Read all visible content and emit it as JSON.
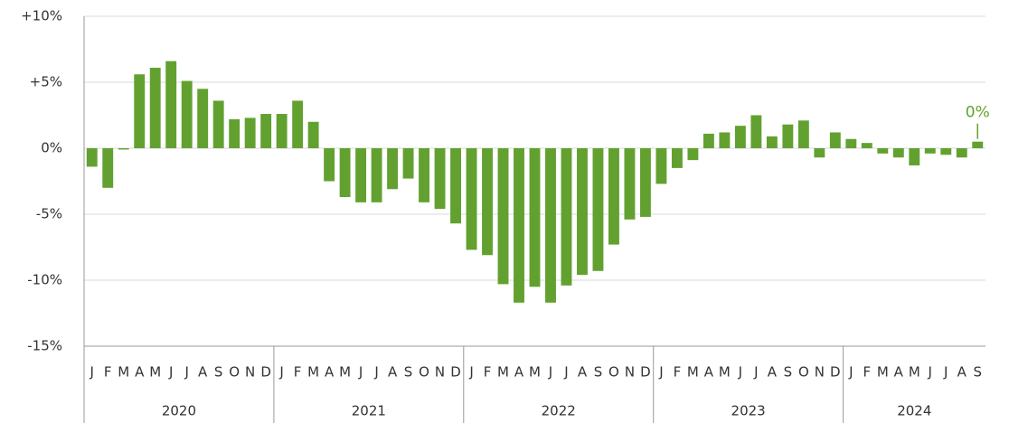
{
  "chart_data": {
    "type": "bar",
    "categories": [
      "J",
      "F",
      "M",
      "A",
      "M",
      "J",
      "J",
      "A",
      "S",
      "O",
      "N",
      "D",
      "J",
      "F",
      "M",
      "A",
      "M",
      "J",
      "J",
      "A",
      "S",
      "O",
      "N",
      "D",
      "J",
      "F",
      "M",
      "A",
      "M",
      "J",
      "J",
      "A",
      "S",
      "O",
      "N",
      "D",
      "J",
      "F",
      "M",
      "A",
      "M",
      "J",
      "J",
      "A",
      "S",
      "O",
      "N",
      "D",
      "J",
      "F",
      "M",
      "A",
      "M",
      "J",
      "J",
      "A",
      "S"
    ],
    "years": [
      "2020",
      "2021",
      "2022",
      "2023",
      "2024"
    ],
    "values": [
      -1.4,
      -3.0,
      -0.1,
      5.6,
      6.1,
      6.6,
      5.1,
      4.5,
      3.6,
      2.2,
      2.3,
      2.6,
      2.6,
      3.6,
      2.0,
      -2.5,
      -3.7,
      -4.1,
      -4.1,
      -3.1,
      -2.3,
      -4.1,
      -4.6,
      -5.7,
      -7.7,
      -8.1,
      -10.3,
      -11.7,
      -10.5,
      -11.7,
      -10.4,
      -9.6,
      -9.3,
      -7.3,
      -5.4,
      -5.2,
      -2.7,
      -1.5,
      -0.9,
      1.1,
      1.2,
      1.7,
      2.5,
      0.9,
      1.8,
      2.1,
      -0.7,
      1.2,
      0.7,
      0.4,
      -0.4,
      -0.7,
      -1.3,
      -0.4,
      -0.5,
      -0.7,
      0.5
    ],
    "color": "#62a12f",
    "annotation": "0%",
    "ylim": [
      -15,
      10
    ],
    "yticks": [
      {
        "value": -15,
        "label": "-15%"
      },
      {
        "value": -10,
        "label": "-10%"
      },
      {
        "value": -5,
        "label": "-5%"
      },
      {
        "value": 0,
        "label": "0%"
      },
      {
        "value": 5,
        "label": "+5%"
      },
      {
        "value": 10,
        "label": "+10%"
      }
    ],
    "grid": true
  }
}
